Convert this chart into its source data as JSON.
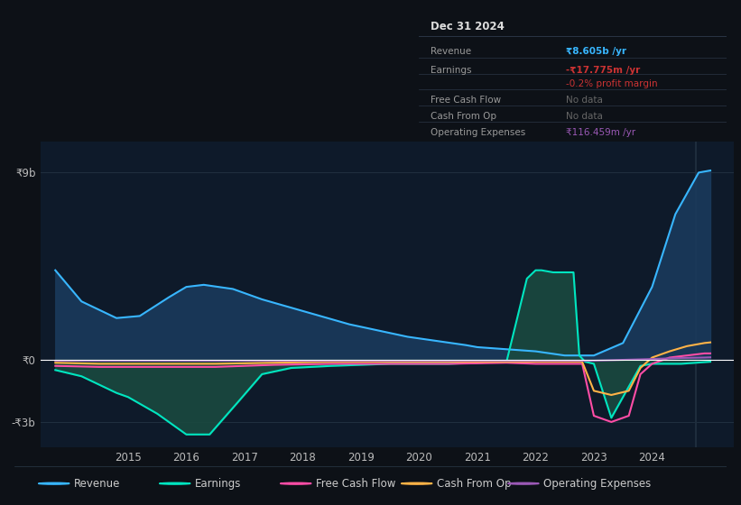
{
  "bg_color": "#0d1117",
  "plot_bg_color": "#0e1a2a",
  "grid_color": "#2a3a4a",
  "zero_line_color": "#ffffff",
  "yticks_labels": [
    "₹9b",
    "₹0",
    "-₹3b"
  ],
  "yticks_values": [
    9000000000,
    0,
    -3000000000
  ],
  "ylim": [
    -4200000000,
    10500000000
  ],
  "xlim_start": 2013.5,
  "xlim_end": 2025.4,
  "xtick_years": [
    2015,
    2016,
    2017,
    2018,
    2019,
    2020,
    2021,
    2022,
    2023,
    2024
  ],
  "revenue": {
    "color": "#38b6ff",
    "fill_color": "#1a3a5c",
    "label": "Revenue",
    "x": [
      2013.75,
      2014.2,
      2014.8,
      2015.2,
      2015.7,
      2016.0,
      2016.3,
      2016.8,
      2017.3,
      2017.8,
      2018.3,
      2018.8,
      2019.3,
      2019.8,
      2020.3,
      2020.8,
      2021.0,
      2021.5,
      2022.0,
      2022.5,
      2023.0,
      2023.5,
      2024.0,
      2024.4,
      2024.8,
      2025.0
    ],
    "y": [
      4300000000,
      2800000000,
      2000000000,
      2100000000,
      3000000000,
      3500000000,
      3600000000,
      3400000000,
      2900000000,
      2500000000,
      2100000000,
      1700000000,
      1400000000,
      1100000000,
      900000000,
      700000000,
      600000000,
      500000000,
      400000000,
      200000000,
      200000000,
      800000000,
      3500000000,
      7000000000,
      9000000000,
      9100000000
    ]
  },
  "earnings": {
    "color": "#00e5c0",
    "fill_color": "#1a4a40",
    "label": "Earnings",
    "x": [
      2013.75,
      2014.2,
      2014.8,
      2015.0,
      2015.5,
      2016.0,
      2016.4,
      2016.9,
      2017.3,
      2017.8,
      2018.5,
      2019.0,
      2019.5,
      2020.0,
      2020.5,
      2021.0,
      2021.5,
      2021.85,
      2022.0,
      2022.1,
      2022.3,
      2022.5,
      2022.65,
      2022.75,
      2022.85,
      2023.0,
      2023.3,
      2023.8,
      2024.0,
      2024.5,
      2025.0
    ],
    "y": [
      -500000000,
      -800000000,
      -1600000000,
      -1800000000,
      -2600000000,
      -3600000000,
      -3600000000,
      -2000000000,
      -700000000,
      -400000000,
      -300000000,
      -250000000,
      -200000000,
      -200000000,
      -200000000,
      -150000000,
      -100000000,
      3900000000,
      4300000000,
      4300000000,
      4200000000,
      4200000000,
      4200000000,
      200000000,
      -100000000,
      -200000000,
      -2800000000,
      -300000000,
      -200000000,
      -200000000,
      -100000000
    ]
  },
  "free_cash_flow": {
    "color": "#ff4da6",
    "label": "Free Cash Flow",
    "x": [
      2013.75,
      2014.5,
      2015.5,
      2016.5,
      2017.5,
      2018.5,
      2019.5,
      2020.5,
      2021.5,
      2022.0,
      2022.5,
      2022.8,
      2023.0,
      2023.3,
      2023.6,
      2023.8,
      2024.0,
      2024.3,
      2024.6,
      2024.9,
      2025.0
    ],
    "y": [
      -300000000,
      -350000000,
      -350000000,
      -350000000,
      -250000000,
      -200000000,
      -200000000,
      -200000000,
      -150000000,
      -200000000,
      -200000000,
      -200000000,
      -2700000000,
      -3000000000,
      -2700000000,
      -700000000,
      -200000000,
      100000000,
      200000000,
      300000000,
      300000000
    ]
  },
  "cash_from_op": {
    "color": "#ffb347",
    "label": "Cash From Op",
    "x": [
      2013.75,
      2014.5,
      2015.5,
      2016.5,
      2017.5,
      2018.5,
      2019.5,
      2020.5,
      2021.5,
      2022.0,
      2022.5,
      2022.8,
      2023.0,
      2023.3,
      2023.6,
      2023.8,
      2024.0,
      2024.3,
      2024.6,
      2024.9,
      2025.0
    ],
    "y": [
      -150000000,
      -200000000,
      -200000000,
      -200000000,
      -150000000,
      -100000000,
      -100000000,
      -100000000,
      -100000000,
      -100000000,
      -100000000,
      -100000000,
      -1500000000,
      -1700000000,
      -1500000000,
      -400000000,
      100000000,
      400000000,
      650000000,
      800000000,
      830000000
    ]
  },
  "operating_expenses": {
    "color": "#9b59b6",
    "label": "Operating Expenses",
    "x": [
      2013.75,
      2015.0,
      2017.0,
      2019.0,
      2021.0,
      2021.8,
      2022.0,
      2022.5,
      2023.0,
      2024.0,
      2024.5,
      2024.9,
      2025.0
    ],
    "y": [
      -50000000,
      -50000000,
      -50000000,
      -50000000,
      -50000000,
      -50000000,
      -50000000,
      -50000000,
      -50000000,
      30000000,
      80000000,
      100000000,
      110000000
    ]
  },
  "tooltip": {
    "bg_color": "#12181f",
    "border_color": "#2a3545",
    "title": "Dec 31 2024",
    "title_color": "#dddddd",
    "title_sep_color": "#2a3545",
    "rows": [
      {
        "label": "Revenue",
        "value": "₹8.605b /yr",
        "value_color": "#38b6ff",
        "label_color": "#999999",
        "sep": true
      },
      {
        "label": "Earnings",
        "value": "-₹17.775m /yr",
        "value_color": "#cc3333",
        "label_color": "#999999",
        "sep": false
      },
      {
        "label": "",
        "value": "-0.2% profit margin",
        "value_color": "#cc3333",
        "label_color": "#999999",
        "sep": true
      },
      {
        "label": "Free Cash Flow",
        "value": "No data",
        "value_color": "#666666",
        "label_color": "#999999",
        "sep": true
      },
      {
        "label": "Cash From Op",
        "value": "No data",
        "value_color": "#666666",
        "label_color": "#999999",
        "sep": true
      },
      {
        "label": "Operating Expenses",
        "value": "₹116.459m /yr",
        "value_color": "#9b59b6",
        "label_color": "#999999",
        "sep": false
      }
    ]
  },
  "legend": [
    {
      "label": "Revenue",
      "color": "#38b6ff"
    },
    {
      "label": "Earnings",
      "color": "#00e5c0"
    },
    {
      "label": "Free Cash Flow",
      "color": "#ff4da6"
    },
    {
      "label": "Cash From Op",
      "color": "#ffb347"
    },
    {
      "label": "Operating Expenses",
      "color": "#9b59b6"
    }
  ]
}
